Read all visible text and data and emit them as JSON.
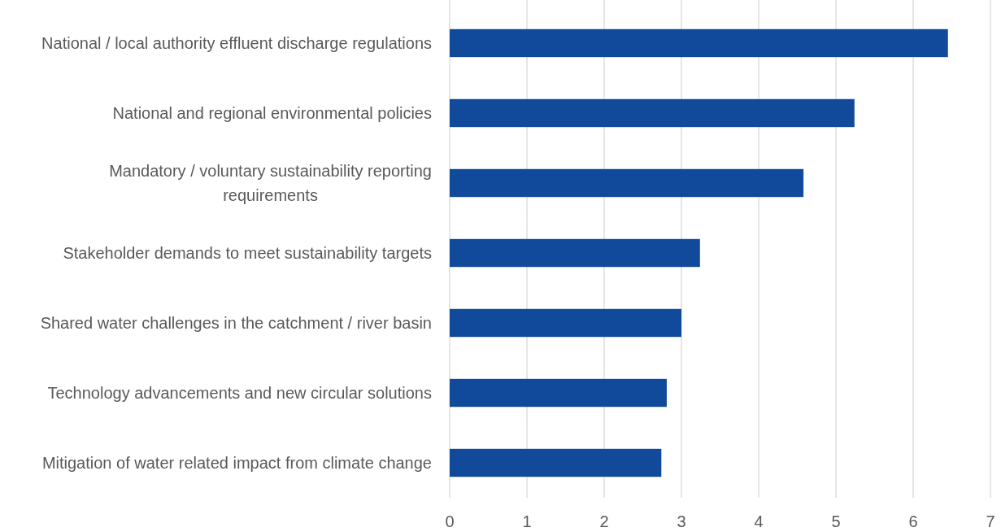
{
  "chart_data": {
    "type": "bar",
    "orientation": "horizontal",
    "categories": [
      "National / local authority effluent discharge regulations",
      "National and regional environmental policies",
      "Mandatory / voluntary sustainability reporting requirements",
      "Stakeholder demands to meet sustainability targets",
      "Shared water challenges in the catchment / river basin",
      "Technology advancements and new circular solutions",
      "Mitigation of water related impact from climate change"
    ],
    "values": [
      6.45,
      5.24,
      4.58,
      3.24,
      3.0,
      2.81,
      2.74
    ],
    "color": "#114a9b",
    "xlim": [
      0,
      7
    ],
    "xticks": [
      0,
      1,
      2,
      3,
      4,
      5,
      6,
      7
    ],
    "grid": "x"
  }
}
